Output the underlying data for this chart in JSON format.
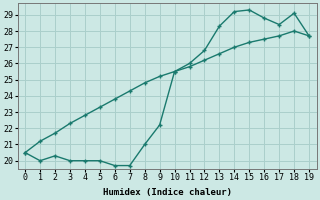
{
  "x": [
    0,
    1,
    2,
    3,
    4,
    5,
    6,
    7,
    8,
    9,
    10,
    11,
    12,
    13,
    14,
    15,
    16,
    17,
    18,
    19
  ],
  "line1": [
    20.5,
    20.0,
    20.3,
    20.0,
    20.0,
    20.0,
    19.7,
    19.7,
    21.0,
    22.2,
    25.5,
    26.0,
    26.8,
    28.3,
    29.2,
    29.3,
    28.8,
    28.4,
    29.1,
    27.7
  ],
  "line2": [
    20.5,
    21.2,
    21.7,
    22.3,
    22.8,
    23.3,
    23.8,
    24.3,
    24.8,
    25.2,
    25.5,
    25.8,
    26.2,
    26.6,
    27.0,
    27.3,
    27.5,
    27.7,
    28.0,
    27.7
  ],
  "color": "#1a7a6e",
  "bg_color": "#cce8e4",
  "grid_color": "#aacfcb",
  "xlabel": "Humidex (Indice chaleur)",
  "ylim": [
    19.5,
    29.7
  ],
  "xlim": [
    -0.5,
    19.5
  ],
  "yticks": [
    20,
    21,
    22,
    23,
    24,
    25,
    26,
    27,
    28,
    29
  ],
  "xticks": [
    0,
    1,
    2,
    3,
    4,
    5,
    6,
    7,
    8,
    9,
    10,
    11,
    12,
    13,
    14,
    15,
    16,
    17,
    18,
    19
  ]
}
